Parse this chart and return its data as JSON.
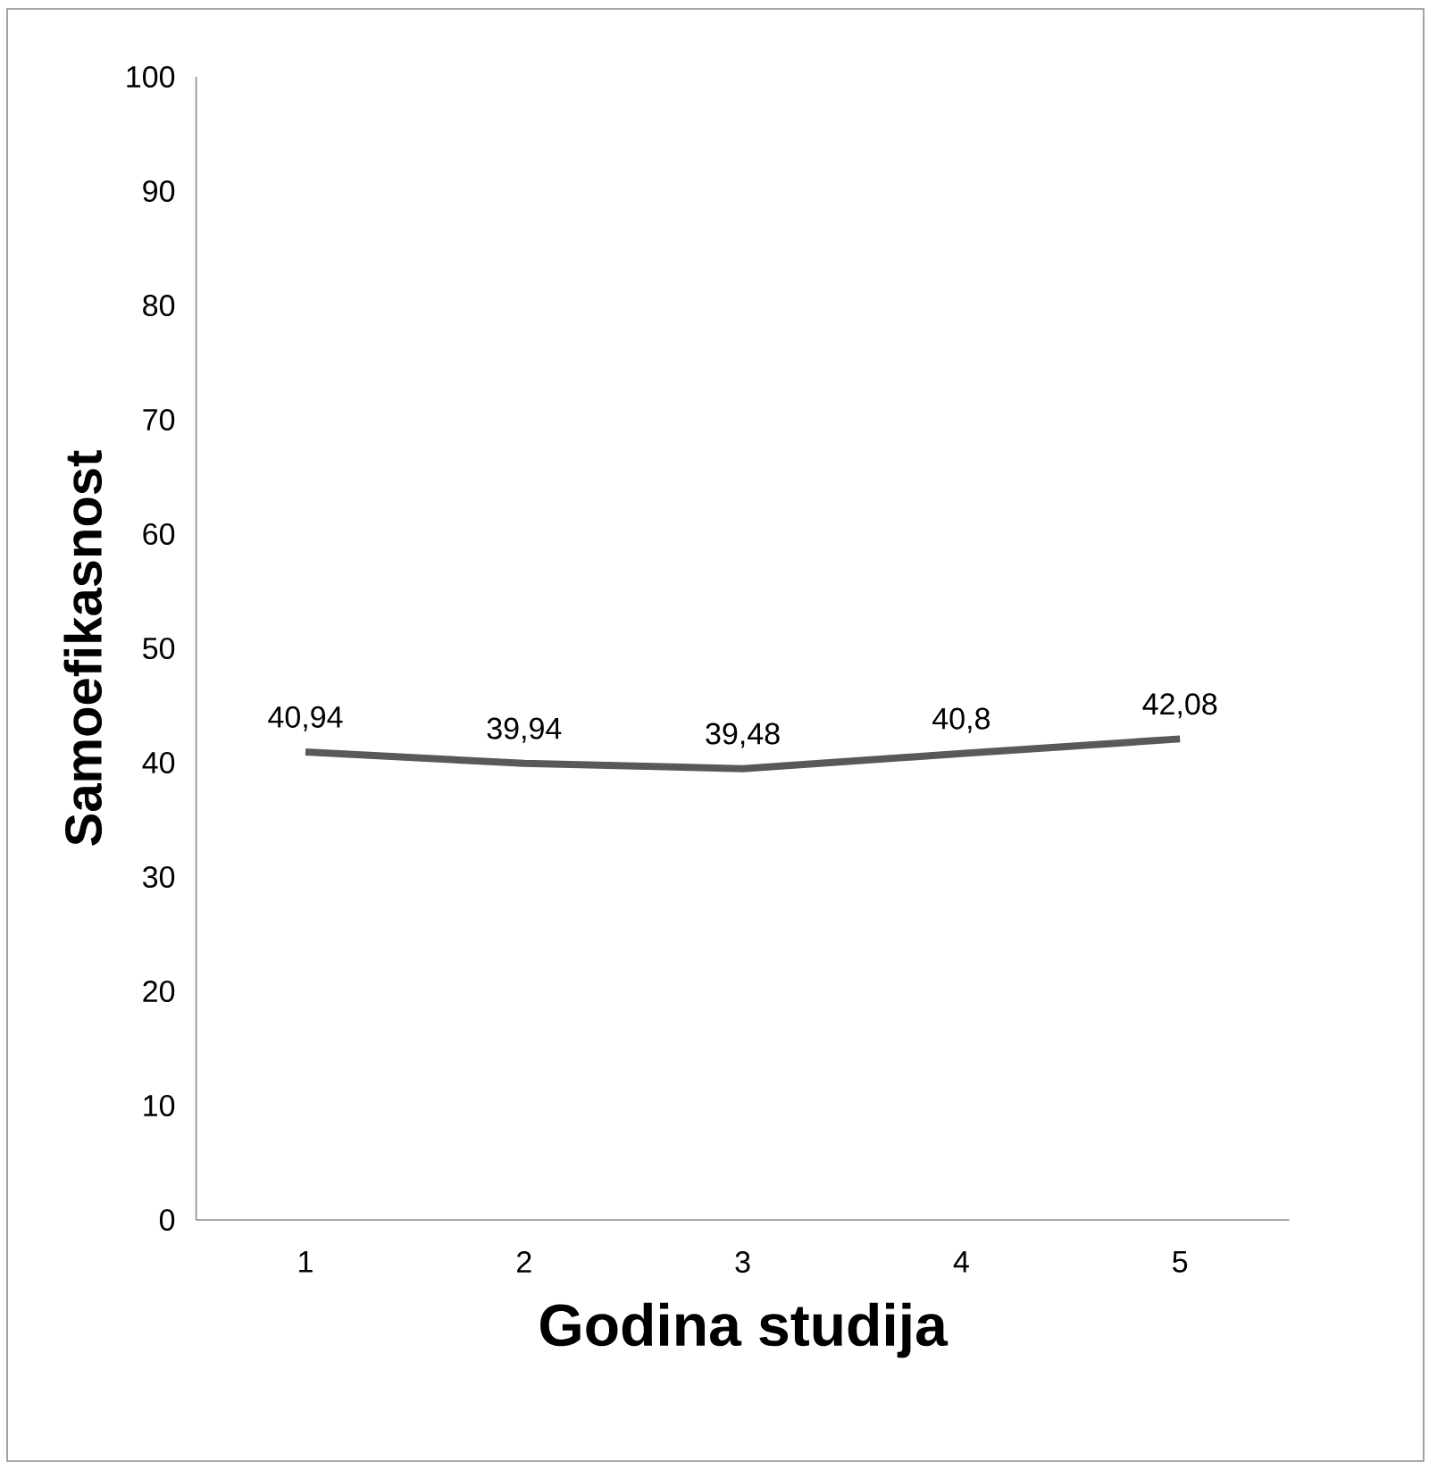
{
  "chart_data": {
    "type": "line",
    "xlabel": "Godina studija",
    "ylabel": "Samoefikasnost",
    "categories": [
      "1",
      "2",
      "3",
      "4",
      "5"
    ],
    "series": [
      {
        "color": "#595959",
        "values": [
          40.94,
          39.94,
          39.48,
          40.8,
          42.08
        ],
        "value_labels": [
          "40,94",
          "39,94",
          "39,48",
          "40,8",
          "42,08"
        ]
      }
    ],
    "ylim": [
      0,
      100
    ],
    "yticks": [
      0,
      10,
      20,
      30,
      40,
      50,
      60,
      70,
      80,
      90,
      100
    ],
    "grid": false,
    "marker": "none",
    "line_style": "solid"
  }
}
